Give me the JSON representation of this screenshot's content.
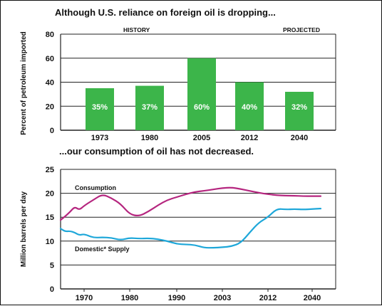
{
  "chart_data": [
    {
      "type": "bar",
      "title": "Although U.S. reliance on foreign oil is dropping...",
      "ylabel": "Percent of petroleum imported",
      "ylim": [
        0,
        80
      ],
      "yticks": [
        0,
        20,
        40,
        60,
        80
      ],
      "grid": true,
      "section_labels": [
        "HISTORY",
        "PROJECTED"
      ],
      "categories": [
        "1973",
        "1980",
        "2005",
        "2012",
        "2040"
      ],
      "values": [
        35,
        37,
        60,
        40,
        32
      ],
      "bar_labels": [
        "35%",
        "37%",
        "60%",
        "40%",
        "32%"
      ],
      "color": "#3cb54a"
    },
    {
      "type": "line",
      "title": "...our consumption of oil has not decreased.",
      "ylabel": "Million barrels per day",
      "ylim": [
        0,
        25
      ],
      "yticks": [
        0,
        5,
        10,
        15,
        20,
        25
      ],
      "xticks": [
        "1970",
        "1980",
        "1990",
        "2003",
        "2012",
        "2040"
      ],
      "grid": true,
      "series": [
        {
          "name": "Consumption",
          "color": "#b5267f",
          "x": [
            0,
            0.2,
            0.4,
            0.6,
            0.8,
            1,
            1.2,
            1.4,
            1.6,
            1.8,
            2,
            2.2,
            2.4,
            2.6,
            2.8,
            3,
            3.2,
            3.4,
            3.6,
            3.8,
            4,
            4.2,
            4.4,
            4.6,
            4.8,
            5,
            5.2,
            5.4,
            5.6,
            5.8,
            6,
            6.2
          ],
          "values": [
            14.4,
            15.2,
            16.1,
            17.2,
            16.5,
            17.4,
            18.6,
            19.8,
            19.0,
            17.8,
            15.6,
            15.2,
            16.2,
            17.5,
            18.6,
            19.2,
            19.8,
            20.3,
            20.5,
            20.8,
            21.1,
            21.2,
            20.9,
            20.5,
            20.1,
            19.8,
            19.6,
            19.5,
            19.5,
            19.4,
            19.4,
            19.4
          ]
        },
        {
          "name": "Domestic* Supply",
          "color": "#1ea7d9",
          "x": [
            0,
            0.2,
            0.4,
            0.6,
            0.8,
            1,
            1.2,
            1.4,
            1.6,
            1.8,
            2,
            2.2,
            2.4,
            2.6,
            2.8,
            3,
            3.2,
            3.4,
            3.6,
            3.8,
            4,
            4.2,
            4.4,
            4.6,
            4.8,
            5,
            5.2,
            5.4,
            5.6,
            5.8,
            6,
            6.2
          ],
          "values": [
            12.6,
            12.0,
            12.1,
            11.8,
            11.2,
            11.5,
            10.7,
            10.8,
            10.7,
            10.2,
            10.7,
            10.5,
            10.6,
            10.4,
            10.0,
            9.4,
            9.3,
            9.2,
            8.6,
            8.6,
            8.7,
            8.9,
            9.6,
            11.8,
            13.9,
            15.0,
            16.8,
            16.6,
            16.7,
            16.6,
            16.7,
            16.8
          ]
        }
      ]
    }
  ]
}
